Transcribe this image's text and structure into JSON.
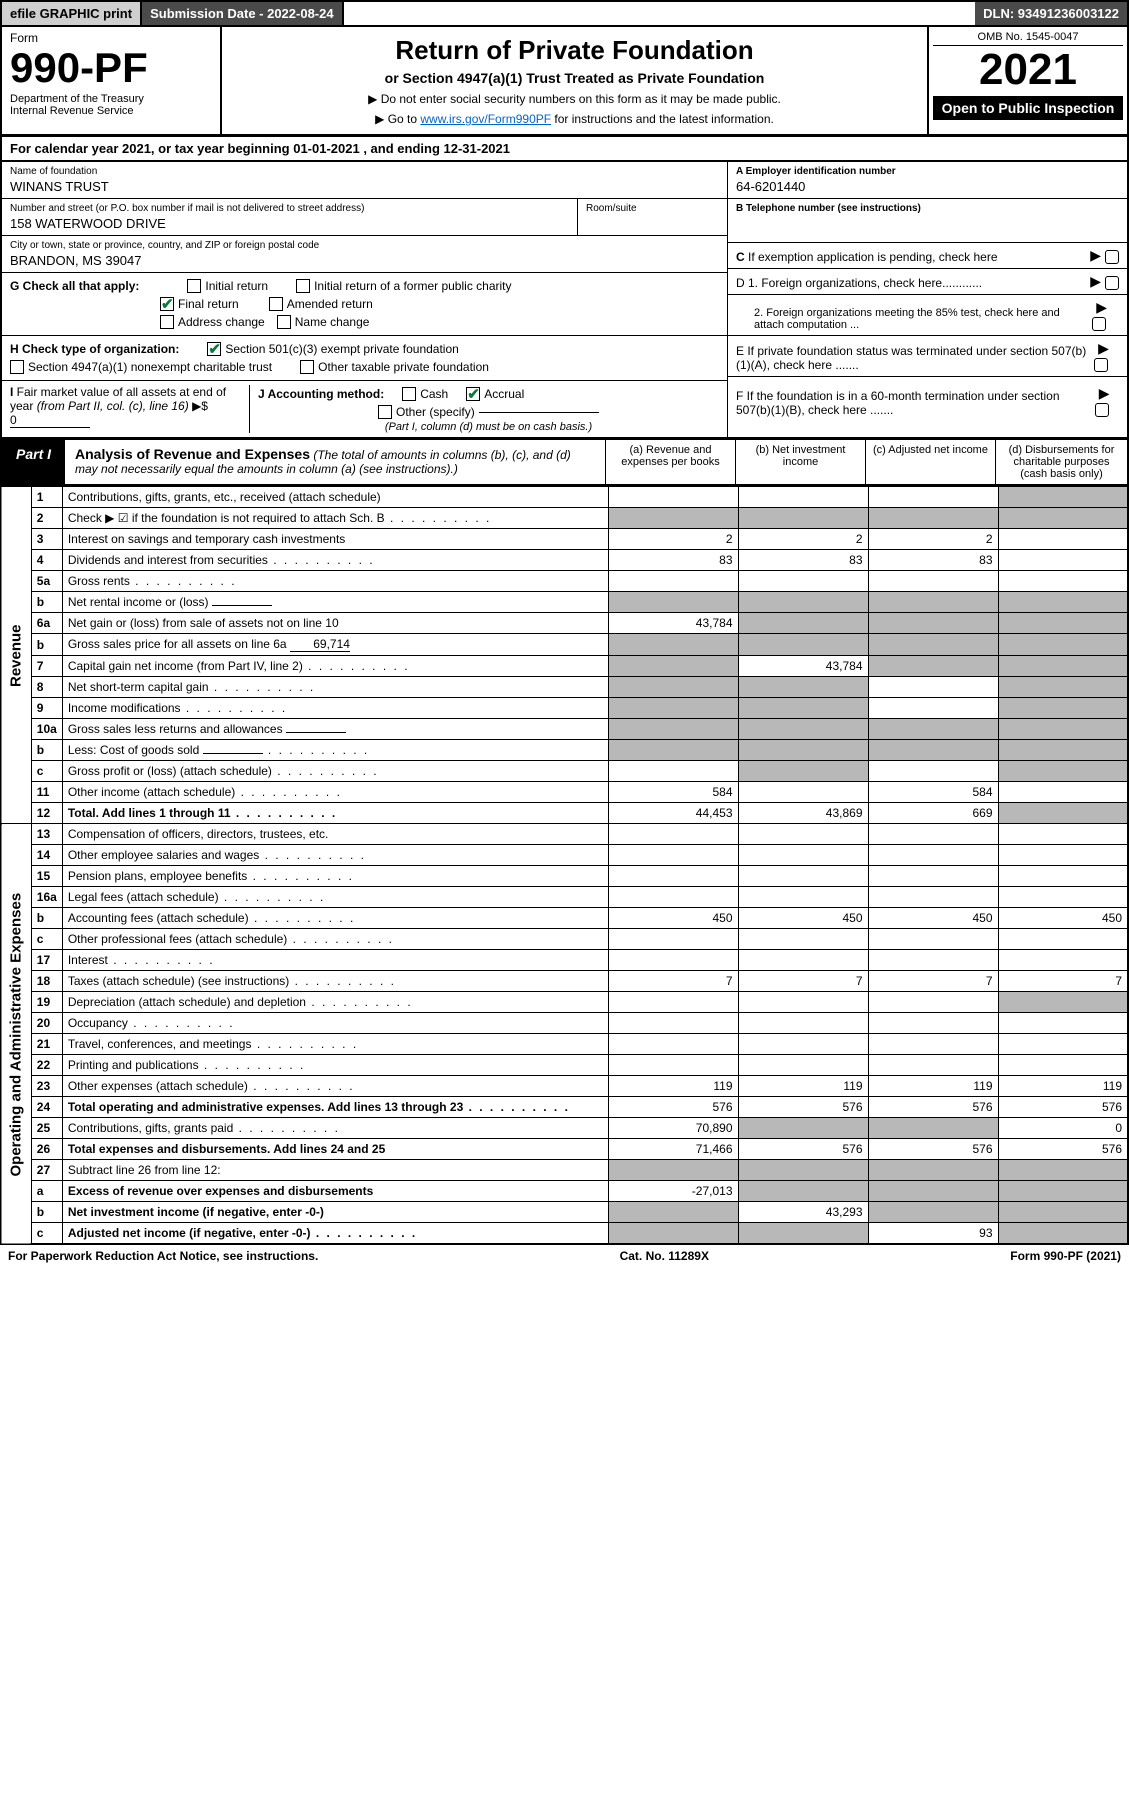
{
  "top": {
    "efile": "efile GRAPHIC print",
    "submission": "Submission Date - 2022-08-24",
    "dln": "DLN: 93491236003122"
  },
  "header": {
    "form_label": "Form",
    "form_number": "990-PF",
    "dept": "Department of the Treasury\nInternal Revenue Service",
    "title": "Return of Private Foundation",
    "subtitle": "or Section 4947(a)(1) Trust Treated as Private Foundation",
    "note1": "▶ Do not enter social security numbers on this form as it may be made public.",
    "note2_pre": "▶ Go to ",
    "note2_link": "www.irs.gov/Form990PF",
    "note2_post": " for instructions and the latest information.",
    "omb": "OMB No. 1545-0047",
    "year": "2021",
    "open": "Open to Public Inspection"
  },
  "cal": "For calendar year 2021, or tax year beginning 01-01-2021          , and ending 12-31-2021",
  "info": {
    "name_lbl": "Name of foundation",
    "name": "WINANS TRUST",
    "addr_lbl": "Number and street (or P.O. box number if mail is not delivered to street address)",
    "addr": "158 WATERWOOD DRIVE",
    "room_lbl": "Room/suite",
    "city_lbl": "City or town, state or province, country, and ZIP or foreign postal code",
    "city": "BRANDON, MS  39047",
    "a_lbl": "A Employer identification number",
    "a_val": "64-6201440",
    "b_lbl": "B Telephone number (see instructions)",
    "c_lbl": "C If exemption application is pending, check here",
    "d1_lbl": "D 1. Foreign organizations, check here............",
    "d2_lbl": "2. Foreign organizations meeting the 85% test, check here and attach computation ...",
    "e_lbl": "E  If private foundation status was terminated under section 507(b)(1)(A), check here .......",
    "f_lbl": "F  If the foundation is in a 60-month termination under section 507(b)(1)(B), check here .......",
    "g_lbl": "G Check all that apply:",
    "g_opts": [
      "Initial return",
      "Final return",
      "Address change",
      "Initial return of a former public charity",
      "Amended return",
      "Name change"
    ],
    "h_lbl": "H Check type of organization:",
    "h_opts": [
      "Section 501(c)(3) exempt private foundation",
      "Section 4947(a)(1) nonexempt charitable trust",
      "Other taxable private foundation"
    ],
    "i_lbl": "I Fair market value of all assets at end of year (from Part II, col. (c), line 16) ▶$ ",
    "i_val": "0",
    "j_lbl": "J Accounting method:",
    "j_opts": [
      "Cash",
      "Accrual",
      "Other (specify)"
    ],
    "j_note": "(Part I, column (d) must be on cash basis.)"
  },
  "part1": {
    "tag": "Part I",
    "title": "Analysis of Revenue and Expenses",
    "note": "(The total of amounts in columns (b), (c), and (d) may not necessarily equal the amounts in column (a) (see instructions).)",
    "cols": {
      "a": "(a)   Revenue and expenses per books",
      "b": "(b)   Net investment income",
      "c": "(c)   Adjusted net income",
      "d": "(d)  Disbursements for charitable purposes (cash basis only)"
    }
  },
  "sides": {
    "rev": "Revenue",
    "exp": "Operating and Administrative Expenses"
  },
  "rows": [
    {
      "n": "1",
      "d": "Contributions, gifts, grants, etc., received (attach schedule)",
      "a": "",
      "b": "",
      "c": "",
      "shade_d": true
    },
    {
      "n": "2",
      "d": "Check ▶ ☑ if the foundation is not required to attach Sch. B",
      "dots": true,
      "shade_all": true
    },
    {
      "n": "3",
      "d": "Interest on savings and temporary cash investments",
      "a": "2",
      "b": "2",
      "c": "2"
    },
    {
      "n": "4",
      "d": "Dividends and interest from securities",
      "dots": true,
      "a": "83",
      "b": "83",
      "c": "83"
    },
    {
      "n": "5a",
      "d": "Gross rents",
      "dots": true
    },
    {
      "n": "b",
      "d": "Net rental income or (loss)",
      "shade_all": true,
      "inline": ""
    },
    {
      "n": "6a",
      "d": "Net gain or (loss) from sale of assets not on line 10",
      "a": "43,784",
      "shade_bc": true,
      "shade_d": true
    },
    {
      "n": "b",
      "d": "Gross sales price for all assets on line 6a",
      "inline": "69,714",
      "shade_all": true
    },
    {
      "n": "7",
      "d": "Capital gain net income (from Part IV, line 2)",
      "dots": true,
      "b": "43,784",
      "shade_a": true,
      "shade_cd": true
    },
    {
      "n": "8",
      "d": "Net short-term capital gain",
      "dots": true,
      "shade_ab": true,
      "shade_d": true
    },
    {
      "n": "9",
      "d": "Income modifications",
      "dots": true,
      "shade_ab": true,
      "shade_d": true
    },
    {
      "n": "10a",
      "d": "Gross sales less returns and allowances",
      "inline": "",
      "shade_all": true
    },
    {
      "n": "b",
      "d": "Less: Cost of goods sold",
      "dots": true,
      "inline": "",
      "shade_all": true
    },
    {
      "n": "c",
      "d": "Gross profit or (loss) (attach schedule)",
      "dots": true,
      "shade_b": true,
      "shade_d": true
    },
    {
      "n": "11",
      "d": "Other income (attach schedule)",
      "dots": true,
      "a": "584",
      "c": "584"
    },
    {
      "n": "12",
      "d": "Total. Add lines 1 through 11",
      "dots": true,
      "bold": true,
      "a": "44,453",
      "b": "43,869",
      "c": "669",
      "shade_d": true
    }
  ],
  "exp_rows": [
    {
      "n": "13",
      "d": "Compensation of officers, directors, trustees, etc."
    },
    {
      "n": "14",
      "d": "Other employee salaries and wages",
      "dots": true
    },
    {
      "n": "15",
      "d": "Pension plans, employee benefits",
      "dots": true
    },
    {
      "n": "16a",
      "d": "Legal fees (attach schedule)",
      "dots": true
    },
    {
      "n": "b",
      "d": "Accounting fees (attach schedule)",
      "dots": true,
      "a": "450",
      "b": "450",
      "c": "450",
      "dd": "450"
    },
    {
      "n": "c",
      "d": "Other professional fees (attach schedule)",
      "dots": true
    },
    {
      "n": "17",
      "d": "Interest",
      "dots": true
    },
    {
      "n": "18",
      "d": "Taxes (attach schedule) (see instructions)",
      "dots": true,
      "a": "7",
      "b": "7",
      "c": "7",
      "dd": "7"
    },
    {
      "n": "19",
      "d": "Depreciation (attach schedule) and depletion",
      "dots": true,
      "shade_d": true
    },
    {
      "n": "20",
      "d": "Occupancy",
      "dots": true
    },
    {
      "n": "21",
      "d": "Travel, conferences, and meetings",
      "dots": true
    },
    {
      "n": "22",
      "d": "Printing and publications",
      "dots": true
    },
    {
      "n": "23",
      "d": "Other expenses (attach schedule)",
      "dots": true,
      "a": "119",
      "b": "119",
      "c": "119",
      "dd": "119"
    },
    {
      "n": "24",
      "d": "Total operating and administrative expenses. Add lines 13 through 23",
      "dots": true,
      "bold": true,
      "a": "576",
      "b": "576",
      "c": "576",
      "dd": "576"
    },
    {
      "n": "25",
      "d": "Contributions, gifts, grants paid",
      "dots": true,
      "a": "70,890",
      "shade_bc": true,
      "dd": "0"
    },
    {
      "n": "26",
      "d": "Total expenses and disbursements. Add lines 24 and 25",
      "bold": true,
      "a": "71,466",
      "b": "576",
      "c": "576",
      "dd": "576"
    },
    {
      "n": "27",
      "d": "Subtract line 26 from line 12:",
      "shade_all": true
    },
    {
      "n": "a",
      "d": "Excess of revenue over expenses and disbursements",
      "bold": true,
      "a": "-27,013",
      "shade_bcd": true
    },
    {
      "n": "b",
      "d": "Net investment income (if negative, enter -0-)",
      "bold": true,
      "b": "43,293",
      "shade_a": true,
      "shade_cd": true
    },
    {
      "n": "c",
      "d": "Adjusted net income (if negative, enter -0-)",
      "bold": true,
      "dots": true,
      "c": "93",
      "shade_ab": true,
      "shade_d": true
    }
  ],
  "foot": {
    "left": "For Paperwork Reduction Act Notice, see instructions.",
    "mid": "Cat. No. 11289X",
    "right": "Form 990-PF (2021)"
  },
  "colors": {
    "shade": "#b8b8b8",
    "link": "#0066cc",
    "check": "#0a7a3a"
  }
}
